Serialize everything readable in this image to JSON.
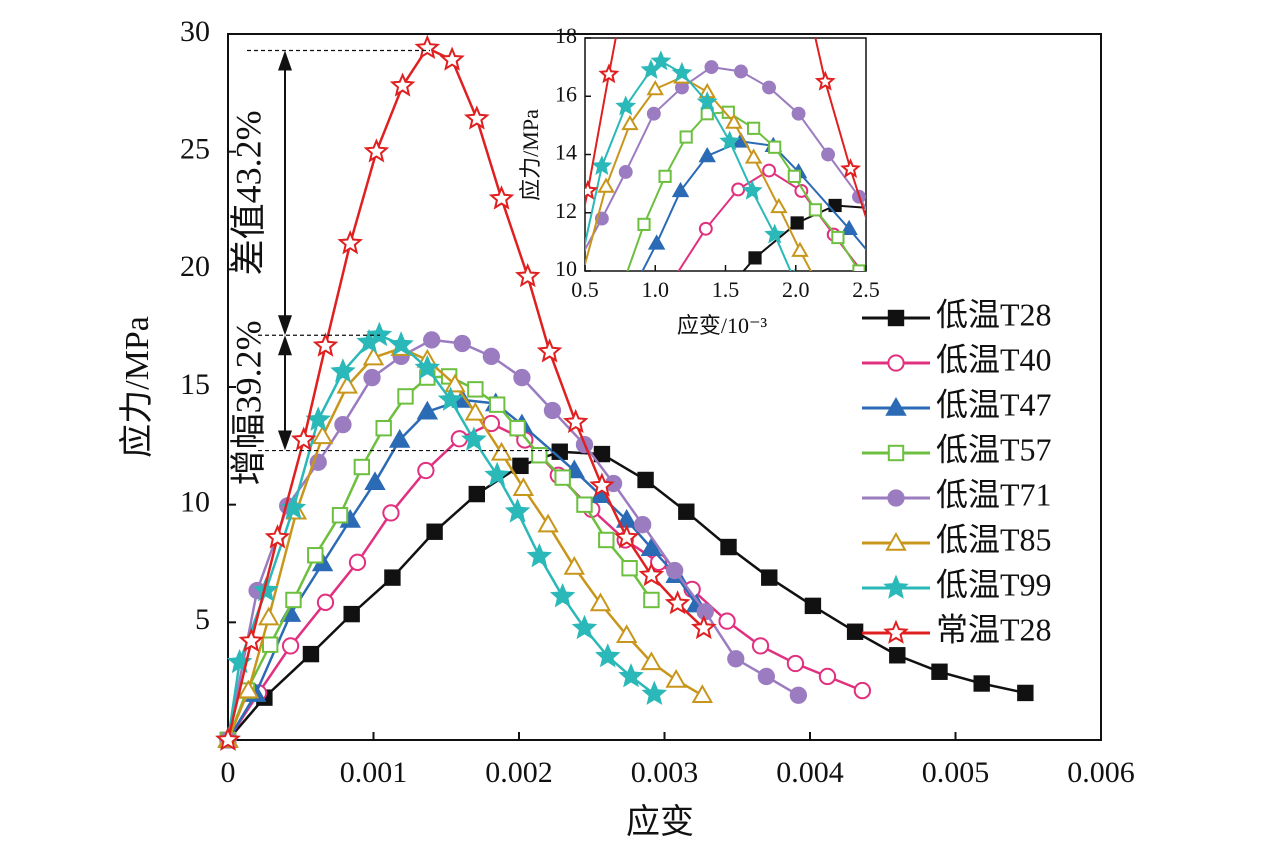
{
  "chart_data": {
    "type": "line",
    "xlabel": "应变",
    "ylabel": "应力/MPa",
    "xlim": [
      0,
      0.006
    ],
    "ylim": [
      0,
      30
    ],
    "xticks": [
      0,
      0.001,
      0.002,
      0.003,
      0.004,
      0.005,
      0.006
    ],
    "yticks": [
      5,
      10,
      15,
      20,
      25,
      30
    ],
    "annotations": [
      "差值43.2%",
      "增幅39.2%"
    ],
    "reference_lines": [
      29.3,
      17.2,
      12.3
    ],
    "series": [
      {
        "name": "低温T28",
        "color": "#111111",
        "marker": "square",
        "open": false,
        "x": [
          0,
          0.00025,
          0.00057,
          0.00085,
          0.00113,
          0.00142,
          0.00171,
          0.00201,
          0.00228,
          0.00257,
          0.00287,
          0.00315,
          0.00344,
          0.00372,
          0.00402,
          0.00431,
          0.0046,
          0.00489,
          0.00518,
          0.00548
        ],
        "values": [
          0,
          1.8,
          3.65,
          5.35,
          6.9,
          8.85,
          10.45,
          11.65,
          12.25,
          12.15,
          11.05,
          9.7,
          8.2,
          6.9,
          5.7,
          4.6,
          3.6,
          2.9,
          2.4,
          2.0
        ]
      },
      {
        "name": "低温T40",
        "color": "#e0307f",
        "marker": "circle",
        "open": true,
        "x": [
          0,
          0.00021,
          0.00043,
          0.00067,
          0.00089,
          0.00112,
          0.00136,
          0.00159,
          0.00181,
          0.00204,
          0.00227,
          0.0025,
          0.00273,
          0.00296,
          0.00319,
          0.00343,
          0.00366,
          0.0039,
          0.00412,
          0.00436
        ],
        "values": [
          0,
          2.0,
          4.0,
          5.85,
          7.55,
          9.65,
          11.45,
          12.8,
          13.45,
          12.75,
          11.25,
          9.8,
          8.5,
          7.55,
          6.4,
          5.05,
          4.0,
          3.25,
          2.7,
          2.1
        ]
      },
      {
        "name": "低温T47",
        "color": "#2b6bb5",
        "marker": "triangle",
        "open": false,
        "x": [
          0,
          0.00019,
          0.00043,
          0.00065,
          0.00084,
          0.00101,
          0.00118,
          0.00137,
          0.00161,
          0.00184,
          0.00202,
          0.00238,
          0.00256,
          0.00274,
          0.00291,
          0.00308,
          0.00322
        ],
        "values": [
          0,
          1.95,
          5.35,
          7.5,
          9.35,
          10.95,
          12.75,
          13.95,
          14.45,
          14.3,
          13.4,
          11.45,
          10.4,
          9.35,
          8.15,
          7.0,
          5.75
        ]
      },
      {
        "name": "低温T57",
        "color": "#6dbf3f",
        "marker": "square",
        "open": true,
        "x": [
          0,
          0.00013,
          0.00029,
          0.00045,
          0.0006,
          0.00077,
          0.00092,
          0.00107,
          0.00122,
          0.00137,
          0.00152,
          0.0017,
          0.00185,
          0.00199,
          0.00214,
          0.0023,
          0.00245,
          0.0026,
          0.00276,
          0.00291
        ],
        "values": [
          0,
          2.1,
          4.05,
          5.95,
          7.85,
          9.55,
          11.6,
          13.25,
          14.6,
          15.4,
          15.45,
          14.9,
          14.25,
          13.25,
          12.1,
          11.15,
          10.0,
          8.5,
          7.3,
          5.95
        ]
      },
      {
        "name": "低温T71",
        "color": "#9b7cc0",
        "marker": "circle",
        "open": false,
        "x": [
          0,
          0.0002,
          0.00041,
          0.00062,
          0.00079,
          0.00099,
          0.00119,
          0.0014,
          0.00161,
          0.00181,
          0.00202,
          0.00223,
          0.00245,
          0.00265,
          0.00285,
          0.00307,
          0.00328,
          0.00349,
          0.0037,
          0.00392
        ],
        "values": [
          0,
          6.35,
          9.95,
          11.8,
          13.4,
          15.4,
          16.3,
          17.0,
          16.85,
          16.3,
          15.4,
          14.0,
          12.55,
          10.9,
          9.15,
          7.2,
          5.45,
          3.45,
          2.7,
          1.9
        ]
      },
      {
        "name": "低温T85",
        "color": "#c8961a",
        "marker": "triangle",
        "open": true,
        "x": [
          0,
          0.00014,
          0.00028,
          0.00047,
          0.00065,
          0.00082,
          0.001,
          0.00119,
          0.00137,
          0.00156,
          0.0017,
          0.00188,
          0.00203,
          0.0022,
          0.00238,
          0.00256,
          0.00274,
          0.00291,
          0.00308,
          0.00326
        ],
        "values": [
          0,
          2.1,
          5.2,
          9.7,
          12.9,
          15.05,
          16.25,
          16.65,
          16.15,
          15.1,
          13.9,
          12.2,
          10.7,
          9.15,
          7.35,
          5.8,
          4.45,
          3.3,
          2.55,
          1.9
        ]
      },
      {
        "name": "低温T99",
        "color": "#2ab8b8",
        "marker": "star",
        "open": false,
        "x": [
          0,
          8e-05,
          0.00026,
          0.00045,
          0.00062,
          0.00079,
          0.00097,
          0.00104,
          0.00119,
          0.00137,
          0.00153,
          0.00169,
          0.00185,
          0.00199,
          0.00214,
          0.0023,
          0.00245,
          0.00261,
          0.00277,
          0.00293
        ],
        "values": [
          0,
          3.3,
          6.35,
          9.85,
          13.6,
          15.65,
          16.9,
          17.2,
          16.8,
          15.8,
          14.45,
          12.75,
          11.25,
          9.7,
          7.8,
          6.1,
          4.75,
          3.55,
          2.7,
          1.95
        ]
      },
      {
        "name": "常温T28",
        "color": "#e02020",
        "marker": "star",
        "open": true,
        "x": [
          0,
          0.00016,
          0.00034,
          0.00052,
          0.00067,
          0.00084,
          0.00102,
          0.0012,
          0.00137,
          0.00154,
          0.00171,
          0.00188,
          0.00206,
          0.00221,
          0.00239,
          0.00257,
          0.00274,
          0.00291,
          0.00309,
          0.00327
        ],
        "values": [
          0,
          4.2,
          8.6,
          12.75,
          16.75,
          21.1,
          25.0,
          27.8,
          29.4,
          28.9,
          26.4,
          23.0,
          19.7,
          16.5,
          13.5,
          10.8,
          8.6,
          7.0,
          5.8,
          4.75
        ]
      }
    ],
    "inset": {
      "xlabel": "应变/10⁻³",
      "ylabel": "应力/MPa",
      "xlim": [
        0.0005,
        0.0025
      ],
      "ylim": [
        10,
        18
      ],
      "xticks": [
        {
          "value": 0.0005,
          "label": "0.5"
        },
        {
          "value": 0.001,
          "label": "1.0"
        },
        {
          "value": 0.0015,
          "label": "1.5"
        },
        {
          "value": 0.002,
          "label": "2.0"
        },
        {
          "value": 0.0025,
          "label": "2.5"
        }
      ],
      "yticks": [
        10,
        12,
        14,
        16,
        18
      ]
    }
  }
}
